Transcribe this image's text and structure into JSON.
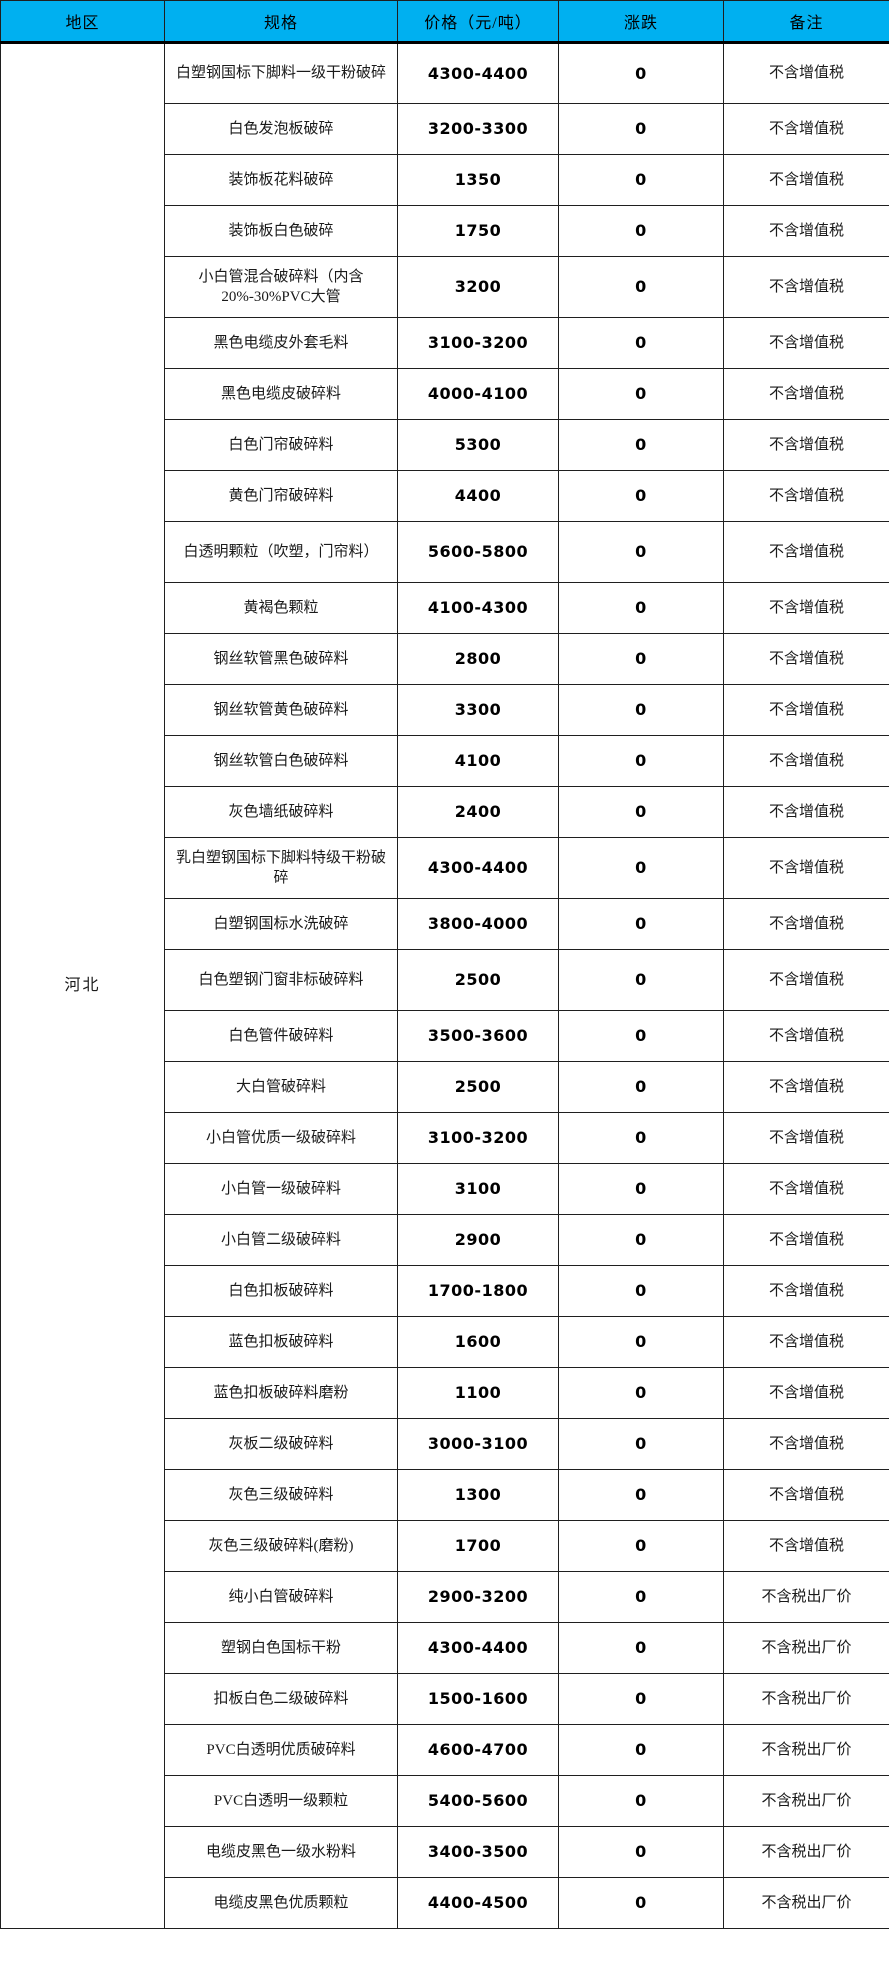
{
  "colors": {
    "header_bg": "#00B0F0",
    "header_text": "#000000",
    "cell_bg": "#FFFFFF",
    "grid_border": "#1F1F1F",
    "body_text": "#1A1A1A"
  },
  "table": {
    "columns": [
      {
        "label": "地区"
      },
      {
        "label": "规格"
      },
      {
        "label": "价格（元/吨）"
      },
      {
        "label": "涨跌"
      },
      {
        "label": "备注"
      }
    ],
    "region": "河北",
    "rows": [
      {
        "spec": "白塑钢国标下脚料一级干粉破碎",
        "price": "4300-4400",
        "change": "0",
        "note": "不含增值税",
        "tall": true
      },
      {
        "spec": "白色发泡板破碎",
        "price": "3200-3300",
        "change": "0",
        "note": "不含增值税",
        "tall": false
      },
      {
        "spec": "装饰板花料破碎",
        "price": "1350",
        "change": "0",
        "note": "不含增值税",
        "tall": false
      },
      {
        "spec": "装饰板白色破碎",
        "price": "1750",
        "change": "0",
        "note": "不含增值税",
        "tall": false
      },
      {
        "spec": "小白管混合破碎料（内含20%-30%PVC大管",
        "price": "3200",
        "change": "0",
        "note": "不含增值税",
        "tall": true
      },
      {
        "spec": "黑色电缆皮外套毛料",
        "price": "3100-3200",
        "change": "0",
        "note": "不含增值税",
        "tall": false
      },
      {
        "spec": "黑色电缆皮破碎料",
        "price": "4000-4100",
        "change": "0",
        "note": "不含增值税",
        "tall": false
      },
      {
        "spec": "白色门帘破碎料",
        "price": "5300",
        "change": "0",
        "note": "不含增值税",
        "tall": false
      },
      {
        "spec": "黄色门帘破碎料",
        "price": "4400",
        "change": "0",
        "note": "不含增值税",
        "tall": false
      },
      {
        "spec": "白透明颗粒（吹塑，门帘料）",
        "price": "5600-5800",
        "change": "0",
        "note": "不含增值税",
        "tall": true
      },
      {
        "spec": "黄褐色颗粒",
        "price": "4100-4300",
        "change": "0",
        "note": "不含增值税",
        "tall": false
      },
      {
        "spec": "钢丝软管黑色破碎料",
        "price": "2800",
        "change": "0",
        "note": "不含增值税",
        "tall": false
      },
      {
        "spec": "钢丝软管黄色破碎料",
        "price": "3300",
        "change": "0",
        "note": "不含增值税",
        "tall": false
      },
      {
        "spec": "钢丝软管白色破碎料",
        "price": "4100",
        "change": "0",
        "note": "不含增值税",
        "tall": false
      },
      {
        "spec": "灰色墙纸破碎料",
        "price": "2400",
        "change": "0",
        "note": "不含增值税",
        "tall": false
      },
      {
        "spec": "乳白塑钢国标下脚料特级干粉破碎",
        "price": "4300-4400",
        "change": "0",
        "note": "不含增值税",
        "tall": true
      },
      {
        "spec": "白塑钢国标水洗破碎",
        "price": "3800-4000",
        "change": "0",
        "note": "不含增值税",
        "tall": false
      },
      {
        "spec": "白色塑钢门窗非标破碎料",
        "price": "2500",
        "change": "0",
        "note": "不含增值税",
        "tall": true
      },
      {
        "spec": "白色管件破碎料",
        "price": "3500-3600",
        "change": "0",
        "note": "不含增值税",
        "tall": false
      },
      {
        "spec": "大白管破碎料",
        "price": "2500",
        "change": "0",
        "note": "不含增值税",
        "tall": false
      },
      {
        "spec": "小白管优质一级破碎料",
        "price": "3100-3200",
        "change": "0",
        "note": "不含增值税",
        "tall": false
      },
      {
        "spec": "小白管一级破碎料",
        "price": "3100",
        "change": "0",
        "note": "不含增值税",
        "tall": false
      },
      {
        "spec": "小白管二级破碎料",
        "price": "2900",
        "change": "0",
        "note": "不含增值税",
        "tall": false
      },
      {
        "spec": "白色扣板破碎料",
        "price": "1700-1800",
        "change": "0",
        "note": "不含增值税",
        "tall": false
      },
      {
        "spec": "蓝色扣板破碎料",
        "price": "1600",
        "change": "0",
        "note": "不含增值税",
        "tall": false
      },
      {
        "spec": "蓝色扣板破碎料磨粉",
        "price": "1100",
        "change": "0",
        "note": "不含增值税",
        "tall": false
      },
      {
        "spec": "灰板二级破碎料",
        "price": "3000-3100",
        "change": "0",
        "note": "不含增值税",
        "tall": false
      },
      {
        "spec": "灰色三级破碎料",
        "price": "1300",
        "change": "0",
        "note": "不含增值税",
        "tall": false
      },
      {
        "spec": "灰色三级破碎料(磨粉)",
        "price": "1700",
        "change": "0",
        "note": "不含增值税",
        "tall": false
      },
      {
        "spec": "纯小白管破碎料",
        "price": "2900-3200",
        "change": "0",
        "note": "不含税出厂价",
        "tall": false
      },
      {
        "spec": "塑钢白色国标干粉",
        "price": "4300-4400",
        "change": "0",
        "note": "不含税出厂价",
        "tall": false
      },
      {
        "spec": "扣板白色二级破碎料",
        "price": "1500-1600",
        "change": "0",
        "note": "不含税出厂价",
        "tall": false
      },
      {
        "spec": "PVC白透明优质破碎料",
        "price": "4600-4700",
        "change": "0",
        "note": "不含税出厂价",
        "tall": false
      },
      {
        "spec": "PVC白透明一级颗粒",
        "price": "5400-5600",
        "change": "0",
        "note": "不含税出厂价",
        "tall": false
      },
      {
        "spec": "电缆皮黑色一级水粉料",
        "price": "3400-3500",
        "change": "0",
        "note": "不含税出厂价",
        "tall": false
      },
      {
        "spec": "电缆皮黑色优质颗粒",
        "price": "4400-4500",
        "change": "0",
        "note": "不含税出厂价",
        "tall": false
      }
    ]
  }
}
